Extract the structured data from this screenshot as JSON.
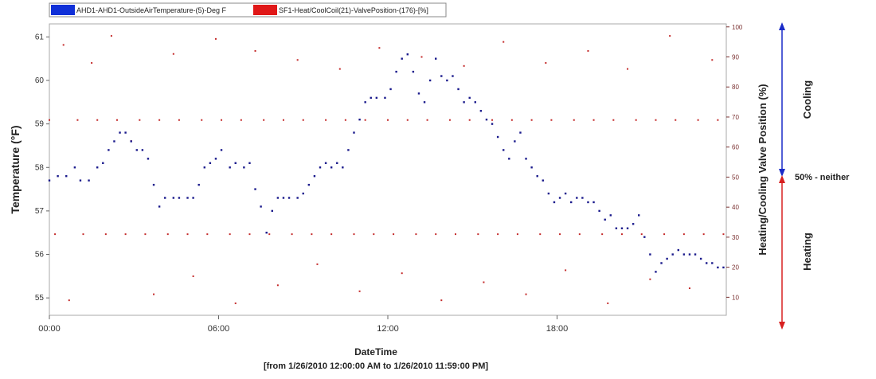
{
  "chart_data": {
    "type": "scatter",
    "title": "",
    "xlabel": "DateTime",
    "x_range_note": "[from 1/26/2010 12:00:00 AM to 1/26/2010 11:59:00 PM]",
    "ylabel_left": "Temperature (°F)",
    "ylabel_right": "Heating/Cooling Valve Position (%)",
    "x_ticks": [
      "00:00",
      "06:00",
      "12:00",
      "18:00"
    ],
    "x_range_hours": [
      0,
      24
    ],
    "left_ticks": [
      "55",
      "56",
      "57",
      "58",
      "59",
      "60",
      "61"
    ],
    "left_range": [
      54.6,
      61.3
    ],
    "right_ticks": [
      "10",
      "20",
      "30",
      "40",
      "50",
      "60",
      "70",
      "80",
      "90",
      "100"
    ],
    "right_range": [
      4,
      101
    ],
    "legend": "top-left",
    "grid": false,
    "series": [
      {
        "name": "AHD1-AHD1-OutsideAirTemperature-(5)-Deg F",
        "axis": "left",
        "color": "#1a1a8c",
        "points": [
          [
            0.0,
            57.7
          ],
          [
            0.3,
            57.8
          ],
          [
            0.6,
            57.8
          ],
          [
            0.9,
            58.0
          ],
          [
            1.1,
            57.7
          ],
          [
            1.4,
            57.7
          ],
          [
            1.7,
            58.0
          ],
          [
            1.9,
            58.1
          ],
          [
            2.1,
            58.4
          ],
          [
            2.3,
            58.6
          ],
          [
            2.5,
            58.8
          ],
          [
            2.7,
            58.8
          ],
          [
            2.9,
            58.6
          ],
          [
            3.1,
            58.4
          ],
          [
            3.3,
            58.4
          ],
          [
            3.5,
            58.2
          ],
          [
            3.7,
            57.6
          ],
          [
            3.9,
            57.1
          ],
          [
            4.1,
            57.3
          ],
          [
            4.4,
            57.3
          ],
          [
            4.6,
            57.3
          ],
          [
            4.9,
            57.3
          ],
          [
            5.1,
            57.3
          ],
          [
            5.3,
            57.6
          ],
          [
            5.5,
            58.0
          ],
          [
            5.7,
            58.1
          ],
          [
            5.9,
            58.2
          ],
          [
            6.1,
            58.4
          ],
          [
            6.4,
            58.0
          ],
          [
            6.6,
            58.1
          ],
          [
            6.9,
            58.0
          ],
          [
            7.1,
            58.1
          ],
          [
            7.3,
            57.5
          ],
          [
            7.5,
            57.1
          ],
          [
            7.7,
            56.5
          ],
          [
            7.9,
            57.0
          ],
          [
            8.1,
            57.3
          ],
          [
            8.3,
            57.3
          ],
          [
            8.5,
            57.3
          ],
          [
            8.8,
            57.3
          ],
          [
            9.0,
            57.4
          ],
          [
            9.2,
            57.6
          ],
          [
            9.4,
            57.8
          ],
          [
            9.6,
            58.0
          ],
          [
            9.8,
            58.1
          ],
          [
            10.0,
            58.0
          ],
          [
            10.2,
            58.1
          ],
          [
            10.4,
            58.0
          ],
          [
            10.6,
            58.4
          ],
          [
            10.8,
            58.8
          ],
          [
            11.0,
            59.1
          ],
          [
            11.2,
            59.5
          ],
          [
            11.4,
            59.6
          ],
          [
            11.6,
            59.6
          ],
          [
            11.9,
            59.6
          ],
          [
            12.1,
            59.8
          ],
          [
            12.3,
            60.2
          ],
          [
            12.5,
            60.5
          ],
          [
            12.7,
            60.6
          ],
          [
            12.9,
            60.2
          ],
          [
            13.1,
            59.7
          ],
          [
            13.3,
            59.5
          ],
          [
            13.5,
            60.0
          ],
          [
            13.7,
            60.5
          ],
          [
            13.9,
            60.1
          ],
          [
            14.1,
            60.0
          ],
          [
            14.3,
            60.1
          ],
          [
            14.5,
            59.8
          ],
          [
            14.7,
            59.5
          ],
          [
            14.9,
            59.6
          ],
          [
            15.1,
            59.5
          ],
          [
            15.3,
            59.3
          ],
          [
            15.5,
            59.1
          ],
          [
            15.7,
            59.0
          ],
          [
            15.9,
            58.7
          ],
          [
            16.1,
            58.4
          ],
          [
            16.3,
            58.2
          ],
          [
            16.5,
            58.6
          ],
          [
            16.7,
            58.8
          ],
          [
            16.9,
            58.2
          ],
          [
            17.1,
            58.0
          ],
          [
            17.3,
            57.8
          ],
          [
            17.5,
            57.7
          ],
          [
            17.7,
            57.4
          ],
          [
            17.9,
            57.2
          ],
          [
            18.1,
            57.3
          ],
          [
            18.3,
            57.4
          ],
          [
            18.5,
            57.2
          ],
          [
            18.7,
            57.3
          ],
          [
            18.9,
            57.3
          ],
          [
            19.1,
            57.2
          ],
          [
            19.3,
            57.2
          ],
          [
            19.5,
            57.0
          ],
          [
            19.7,
            56.8
          ],
          [
            19.9,
            56.9
          ],
          [
            20.1,
            56.6
          ],
          [
            20.3,
            56.6
          ],
          [
            20.5,
            56.6
          ],
          [
            20.7,
            56.7
          ],
          [
            20.9,
            56.9
          ],
          [
            21.1,
            56.4
          ],
          [
            21.3,
            56.0
          ],
          [
            21.5,
            55.6
          ],
          [
            21.7,
            55.8
          ],
          [
            21.9,
            55.9
          ],
          [
            22.1,
            56.0
          ],
          [
            22.3,
            56.1
          ],
          [
            22.5,
            56.0
          ],
          [
            22.7,
            56.0
          ],
          [
            22.9,
            56.0
          ],
          [
            23.1,
            55.9
          ],
          [
            23.3,
            55.8
          ],
          [
            23.5,
            55.8
          ],
          [
            23.7,
            55.7
          ],
          [
            23.9,
            55.7
          ]
        ]
      },
      {
        "name": "SF1-Heat/CoolCoil(21)-ValvePosition-(176)-[%]",
        "axis": "right",
        "color": "#c42a2a",
        "points": [
          [
            0.0,
            69
          ],
          [
            0.2,
            31
          ],
          [
            0.5,
            94
          ],
          [
            0.7,
            9
          ],
          [
            1.0,
            69
          ],
          [
            1.2,
            31
          ],
          [
            1.5,
            88
          ],
          [
            1.7,
            69
          ],
          [
            2.0,
            31
          ],
          [
            2.2,
            97
          ],
          [
            2.4,
            69
          ],
          [
            2.7,
            31
          ],
          [
            2.9,
            62
          ],
          [
            3.2,
            69
          ],
          [
            3.4,
            31
          ],
          [
            3.7,
            11
          ],
          [
            3.9,
            69
          ],
          [
            4.2,
            31
          ],
          [
            4.4,
            91
          ],
          [
            4.6,
            69
          ],
          [
            4.9,
            31
          ],
          [
            5.1,
            17
          ],
          [
            5.4,
            69
          ],
          [
            5.6,
            31
          ],
          [
            5.9,
            96
          ],
          [
            6.1,
            69
          ],
          [
            6.4,
            31
          ],
          [
            6.6,
            8
          ],
          [
            6.8,
            69
          ],
          [
            7.1,
            31
          ],
          [
            7.3,
            92
          ],
          [
            7.6,
            69
          ],
          [
            7.8,
            31
          ],
          [
            8.1,
            14
          ],
          [
            8.3,
            69
          ],
          [
            8.6,
            31
          ],
          [
            8.8,
            89
          ],
          [
            9.0,
            69
          ],
          [
            9.3,
            31
          ],
          [
            9.5,
            21
          ],
          [
            9.8,
            69
          ],
          [
            10.0,
            31
          ],
          [
            10.3,
            86
          ],
          [
            10.5,
            69
          ],
          [
            10.8,
            31
          ],
          [
            11.0,
            12
          ],
          [
            11.2,
            69
          ],
          [
            11.5,
            31
          ],
          [
            11.7,
            93
          ],
          [
            12.0,
            69
          ],
          [
            12.2,
            31
          ],
          [
            12.5,
            18
          ],
          [
            12.7,
            69
          ],
          [
            13.0,
            31
          ],
          [
            13.2,
            90
          ],
          [
            13.4,
            69
          ],
          [
            13.7,
            31
          ],
          [
            13.9,
            9
          ],
          [
            14.2,
            69
          ],
          [
            14.4,
            31
          ],
          [
            14.7,
            87
          ],
          [
            14.9,
            69
          ],
          [
            15.2,
            31
          ],
          [
            15.4,
            15
          ],
          [
            15.7,
            69
          ],
          [
            15.9,
            31
          ],
          [
            16.1,
            95
          ],
          [
            16.4,
            69
          ],
          [
            16.6,
            31
          ],
          [
            16.9,
            11
          ],
          [
            17.1,
            69
          ],
          [
            17.4,
            31
          ],
          [
            17.6,
            88
          ],
          [
            17.8,
            69
          ],
          [
            18.1,
            31
          ],
          [
            18.3,
            19
          ],
          [
            18.6,
            69
          ],
          [
            18.8,
            31
          ],
          [
            19.1,
            92
          ],
          [
            19.3,
            69
          ],
          [
            19.6,
            31
          ],
          [
            19.8,
            8
          ],
          [
            20.0,
            69
          ],
          [
            20.3,
            31
          ],
          [
            20.5,
            86
          ],
          [
            20.8,
            69
          ],
          [
            21.0,
            31
          ],
          [
            21.3,
            16
          ],
          [
            21.5,
            69
          ],
          [
            21.8,
            31
          ],
          [
            22.0,
            97
          ],
          [
            22.2,
            69
          ],
          [
            22.5,
            31
          ],
          [
            22.7,
            13
          ],
          [
            23.0,
            69
          ],
          [
            23.2,
            31
          ],
          [
            23.5,
            89
          ],
          [
            23.7,
            69
          ],
          [
            23.9,
            31
          ]
        ]
      }
    ],
    "annotations": {
      "cooling": "Cooling",
      "neither": "50% - neither",
      "heating": "Heating"
    }
  }
}
